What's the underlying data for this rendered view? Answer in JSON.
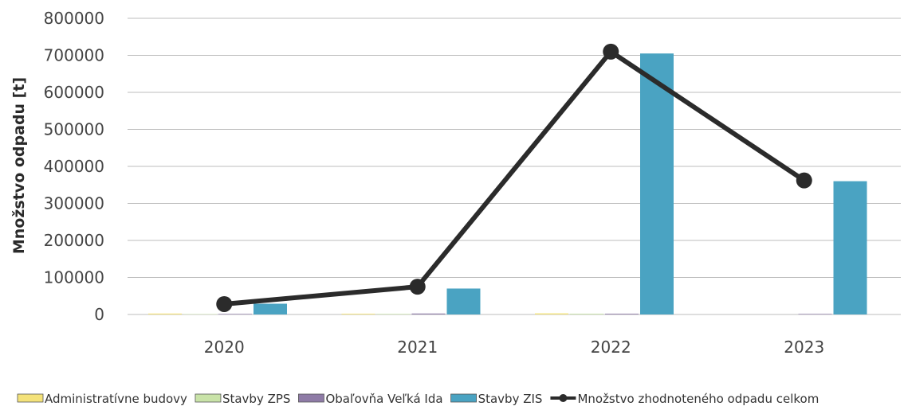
{
  "chart_data": {
    "type": "bar",
    "categories": [
      "2020",
      "2021",
      "2022",
      "2023"
    ],
    "ylabel": "Množstvo odpadu [t]",
    "xlabel": "",
    "ylim": [
      0,
      800000
    ],
    "yticks": [
      0,
      100000,
      200000,
      300000,
      400000,
      500000,
      600000,
      700000,
      800000
    ],
    "grid": true,
    "legend_position": "bottom",
    "series": [
      {
        "name": "Administratívne budovy",
        "type": "bar",
        "color": "#f4e27a",
        "values": [
          2500,
          2000,
          3000,
          0
        ]
      },
      {
        "name": "Stavby ZPS",
        "type": "bar",
        "color": "#c9e3a8",
        "values": [
          1000,
          1500,
          2000,
          0
        ]
      },
      {
        "name": "Obaľovňa Veľká Ida",
        "type": "bar",
        "color": "#8e7ba6",
        "values": [
          1500,
          2500,
          2000,
          1500
        ]
      },
      {
        "name": "Stavby ZIS",
        "type": "bar",
        "color": "#4aa3c2",
        "values": [
          29000,
          70000,
          705000,
          360000
        ]
      },
      {
        "name": "Množstvo zhodnoteného odpadu celkom",
        "type": "line",
        "color": "#2b2b2b",
        "values": [
          28000,
          75000,
          710000,
          362000
        ]
      }
    ]
  }
}
